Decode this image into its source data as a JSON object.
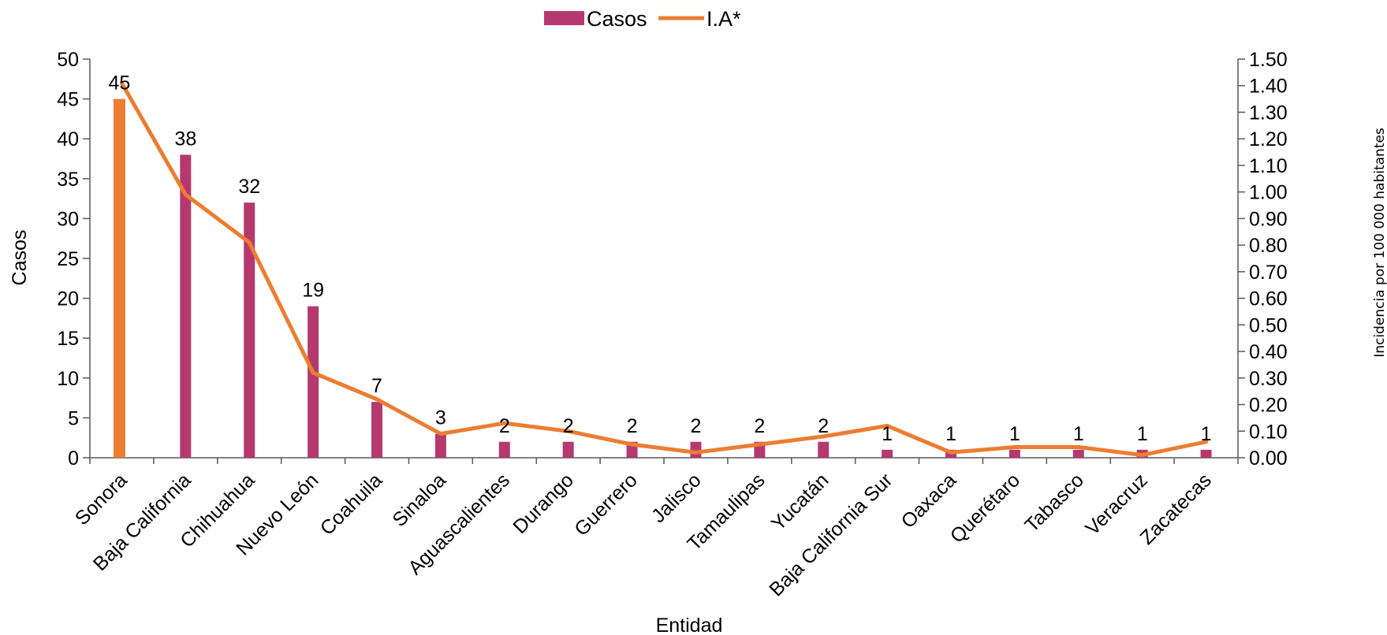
{
  "chart_data": {
    "type": "bar",
    "categories": [
      "Sonora",
      "Baja California",
      "Chihuahua",
      "Nuevo León",
      "Coahuila",
      "Sinaloa",
      "Aguascalientes",
      "Durango",
      "Guerrero",
      "Jalisco",
      "Tamaulipas",
      "Yucatán",
      "Baja California Sur",
      "Oaxaca",
      "Querétaro",
      "Tabasco",
      "Veracruz",
      "Zacatecas"
    ],
    "series": [
      {
        "name": "Casos",
        "type": "bar",
        "axis": "left",
        "color": "#b5396f",
        "highlight_color": "#ed7d31",
        "values": [
          45,
          38,
          32,
          19,
          7,
          3,
          2,
          2,
          2,
          2,
          2,
          2,
          1,
          1,
          1,
          1,
          1,
          1
        ],
        "data_labels": [
          "45",
          "38",
          "32",
          "19",
          "7",
          "3",
          "2",
          "2",
          "2",
          "2",
          "2",
          "2",
          "1",
          "1",
          "1",
          "1",
          "1",
          "1"
        ]
      },
      {
        "name": "I.A*",
        "type": "line",
        "axis": "right",
        "color": "#ed7d31",
        "values": [
          1.41,
          0.99,
          0.81,
          0.32,
          0.22,
          0.09,
          0.13,
          0.1,
          0.05,
          0.02,
          0.05,
          0.08,
          0.12,
          0.02,
          0.04,
          0.04,
          0.01,
          0.06
        ]
      }
    ],
    "xlabel": "Entidad",
    "ylabel": "Casos",
    "y2label": "Incidencia por 100 000 habitantes",
    "ylim": [
      0,
      50
    ],
    "y2lim": [
      0,
      1.5
    ],
    "yticks": [
      "0",
      "5",
      "10",
      "15",
      "20",
      "25",
      "30",
      "35",
      "40",
      "45",
      "50"
    ],
    "y2ticks": [
      "0.00",
      "0.10",
      "0.20",
      "0.30",
      "0.40",
      "0.50",
      "0.60",
      "0.70",
      "0.80",
      "0.90",
      "1.00",
      "1.10",
      "1.20",
      "1.30",
      "1.40",
      "1.50"
    ],
    "grid": false,
    "legend": "top-center",
    "axis_color": "#595959"
  }
}
